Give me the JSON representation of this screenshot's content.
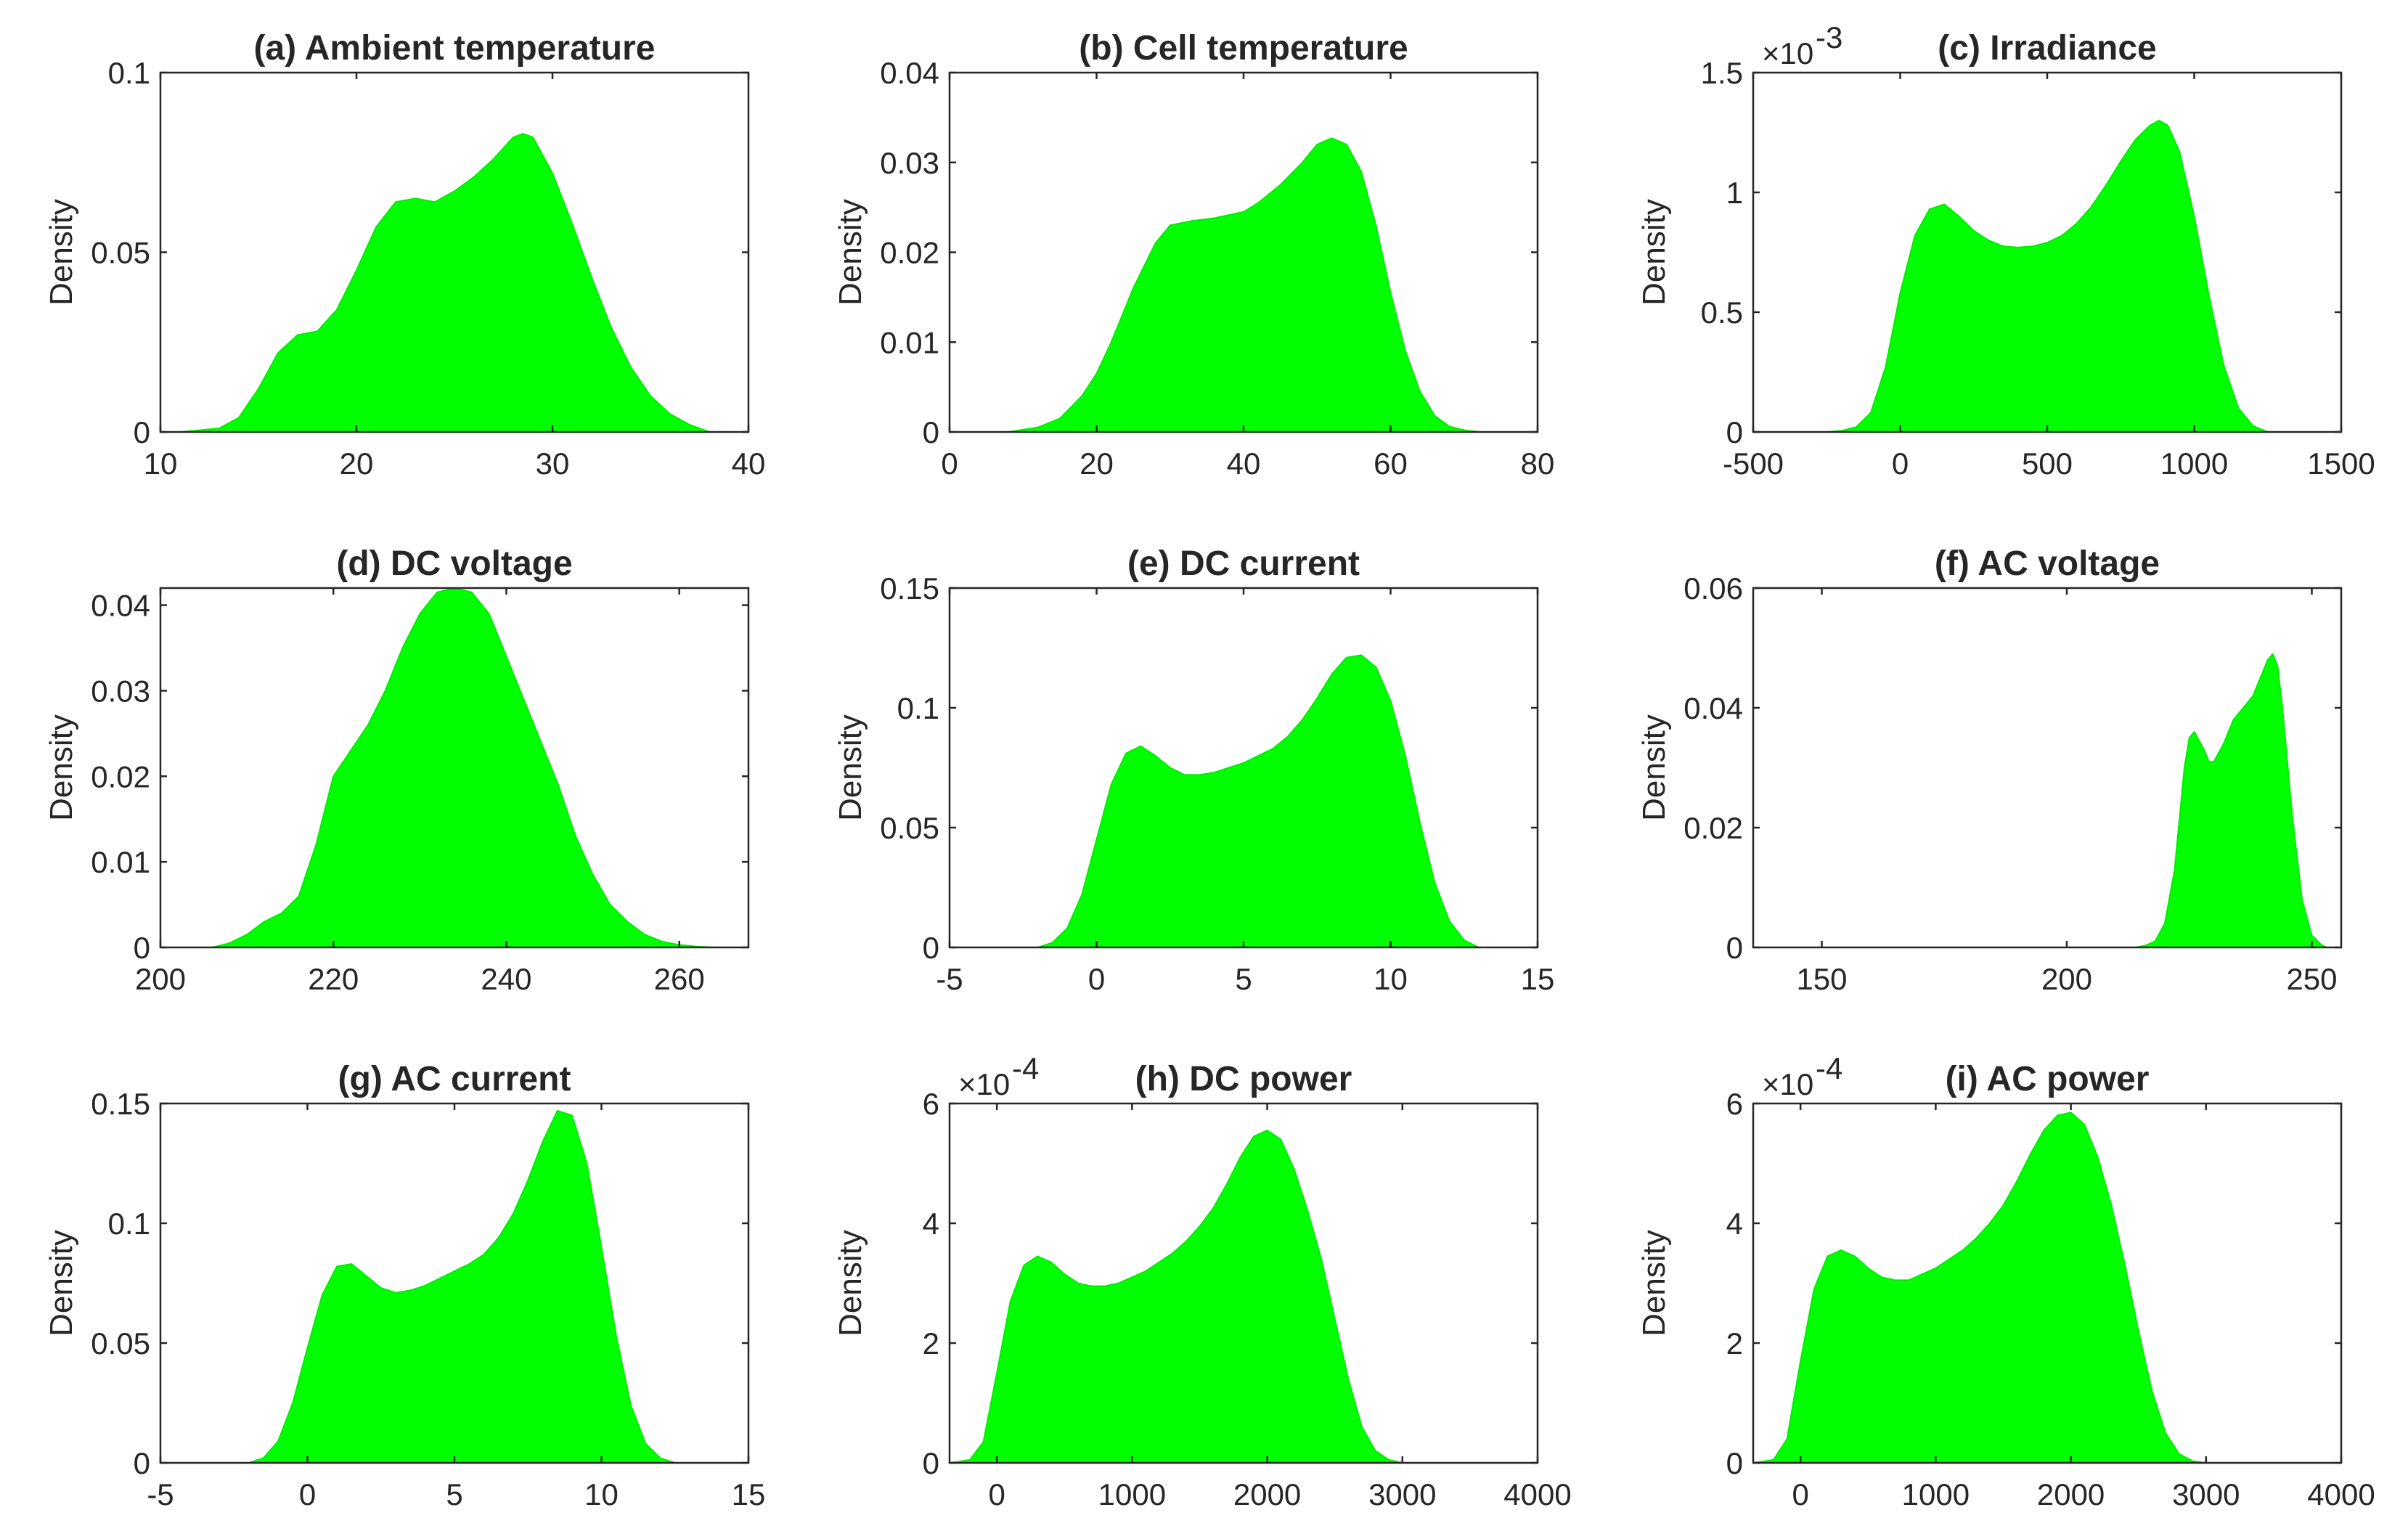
{
  "figure": {
    "fill_color": "#00ff00",
    "axis_color": "#262626"
  },
  "chart_data": [
    {
      "type": "area",
      "title": "(a) Ambient temperature",
      "ylabel": "Density",
      "xlabel": "",
      "xlim": [
        10,
        40
      ],
      "ylim": [
        0,
        0.1
      ],
      "xticks": [
        10,
        20,
        30,
        40
      ],
      "xtick_labels": [
        "10",
        "20",
        "30",
        "40"
      ],
      "yticks": [
        0,
        0.05,
        0.1
      ],
      "ytick_labels": [
        "0",
        "0.05",
        "0.1"
      ],
      "exponent": "",
      "x": [
        11,
        13,
        14,
        15,
        16,
        17,
        18,
        19,
        20,
        21,
        22,
        23,
        24,
        25,
        26,
        27,
        28,
        28.5,
        29,
        30,
        31,
        32,
        33,
        34,
        35,
        36,
        37,
        38
      ],
      "y": [
        0,
        0.001,
        0.004,
        0.012,
        0.022,
        0.027,
        0.028,
        0.034,
        0.045,
        0.057,
        0.064,
        0.065,
        0.064,
        0.067,
        0.071,
        0.076,
        0.082,
        0.083,
        0.082,
        0.072,
        0.058,
        0.043,
        0.029,
        0.018,
        0.01,
        0.005,
        0.002,
        0
      ]
    },
    {
      "type": "area",
      "title": "(b) Cell temperature",
      "ylabel": "Density",
      "xlabel": "",
      "xlim": [
        0,
        80
      ],
      "ylim": [
        0,
        0.04
      ],
      "xticks": [
        0,
        20,
        40,
        60,
        80
      ],
      "xtick_labels": [
        "0",
        "20",
        "40",
        "60",
        "80"
      ],
      "yticks": [
        0,
        0.01,
        0.02,
        0.03,
        0.04
      ],
      "ytick_labels": [
        "0",
        "0.01",
        "0.02",
        "0.03",
        "0.04"
      ],
      "exponent": "",
      "x": [
        8,
        12,
        15,
        18,
        20,
        22,
        25,
        28,
        30,
        33,
        36,
        40,
        42,
        45,
        48,
        50,
        52,
        54,
        56,
        58,
        60,
        62,
        64,
        66,
        68,
        70,
        72
      ],
      "y": [
        0,
        0.0005,
        0.0015,
        0.004,
        0.0065,
        0.01,
        0.016,
        0.021,
        0.023,
        0.0235,
        0.0238,
        0.0245,
        0.0255,
        0.0275,
        0.03,
        0.032,
        0.0327,
        0.032,
        0.029,
        0.023,
        0.0155,
        0.009,
        0.0045,
        0.0018,
        0.0006,
        0.0002,
        0
      ]
    },
    {
      "type": "area",
      "title": "(c) Irradiance",
      "ylabel": "Density",
      "xlabel": "",
      "xlim": [
        -500,
        1500
      ],
      "ylim": [
        0,
        1.5
      ],
      "xticks": [
        -500,
        0,
        500,
        1000,
        1500
      ],
      "xtick_labels": [
        "-500",
        "0",
        "500",
        "1000",
        "1500"
      ],
      "yticks": [
        0,
        0.5,
        1,
        1.5
      ],
      "ytick_labels": [
        "0",
        "0.5",
        "1",
        "1.5"
      ],
      "exponent": "-3",
      "x": [
        -250,
        -200,
        -150,
        -100,
        -50,
        0,
        50,
        100,
        150,
        200,
        250,
        300,
        350,
        400,
        450,
        500,
        550,
        600,
        650,
        700,
        750,
        800,
        850,
        880,
        910,
        950,
        1000,
        1050,
        1100,
        1150,
        1200,
        1250
      ],
      "y": [
        0,
        0.005,
        0.02,
        0.08,
        0.27,
        0.58,
        0.82,
        0.93,
        0.95,
        0.9,
        0.84,
        0.8,
        0.775,
        0.77,
        0.775,
        0.79,
        0.82,
        0.87,
        0.94,
        1.03,
        1.13,
        1.22,
        1.28,
        1.3,
        1.28,
        1.17,
        0.9,
        0.57,
        0.28,
        0.1,
        0.025,
        0
      ]
    },
    {
      "type": "area",
      "title": "(d) DC voltage",
      "ylabel": "Density",
      "xlabel": "",
      "xlim": [
        200,
        268
      ],
      "ylim": [
        0,
        0.042
      ],
      "xticks": [
        200,
        220,
        240,
        260
      ],
      "xtick_labels": [
        "200",
        "220",
        "240",
        "260"
      ],
      "yticks": [
        0,
        0.01,
        0.02,
        0.03,
        0.04
      ],
      "ytick_labels": [
        "0",
        "0.01",
        "0.02",
        "0.03",
        "0.04"
      ],
      "exponent": "",
      "x": [
        206,
        208,
        210,
        212,
        214,
        216,
        218,
        220,
        222,
        224,
        226,
        228,
        230,
        232,
        234,
        236,
        238,
        240,
        242,
        244,
        246,
        248,
        250,
        252,
        254,
        256,
        258,
        260,
        262,
        264
      ],
      "y": [
        0,
        0.0005,
        0.0015,
        0.003,
        0.004,
        0.006,
        0.012,
        0.02,
        0.023,
        0.026,
        0.03,
        0.035,
        0.039,
        0.0415,
        0.042,
        0.0415,
        0.039,
        0.034,
        0.029,
        0.024,
        0.019,
        0.013,
        0.0085,
        0.005,
        0.003,
        0.0015,
        0.0007,
        0.0003,
        0.0001,
        0
      ]
    },
    {
      "type": "area",
      "title": "(e) DC current",
      "ylabel": "Density",
      "xlabel": "",
      "xlim": [
        -5,
        15
      ],
      "ylim": [
        0,
        0.15
      ],
      "xticks": [
        -5,
        0,
        5,
        10,
        15
      ],
      "xtick_labels": [
        "-5",
        "0",
        "5",
        "10",
        "15"
      ],
      "yticks": [
        0,
        0.05,
        0.1,
        0.15
      ],
      "ytick_labels": [
        "0",
        "0.05",
        "0.1",
        "0.15"
      ],
      "exponent": "",
      "x": [
        -2,
        -1.5,
        -1,
        -0.5,
        0,
        0.5,
        1,
        1.5,
        2,
        2.5,
        3,
        3.5,
        4,
        4.5,
        5,
        5.5,
        6,
        6.5,
        7,
        7.5,
        8,
        8.5,
        9,
        9.5,
        10,
        10.5,
        11,
        11.5,
        12,
        12.5,
        13
      ],
      "y": [
        0,
        0.002,
        0.008,
        0.022,
        0.045,
        0.068,
        0.081,
        0.084,
        0.08,
        0.075,
        0.072,
        0.072,
        0.073,
        0.075,
        0.077,
        0.08,
        0.083,
        0.088,
        0.095,
        0.104,
        0.114,
        0.121,
        0.122,
        0.117,
        0.103,
        0.08,
        0.052,
        0.027,
        0.011,
        0.003,
        0
      ]
    },
    {
      "type": "area",
      "title": "(f) AC voltage",
      "ylabel": "Density",
      "xlabel": "",
      "xlim": [
        136,
        256
      ],
      "ylim": [
        0,
        0.06
      ],
      "xticks": [
        150,
        200,
        250
      ],
      "xtick_labels": [
        "150",
        "200",
        "250"
      ],
      "yticks": [
        0,
        0.02,
        0.04,
        0.06
      ],
      "ytick_labels": [
        "0",
        "0.02",
        "0.04",
        "0.06"
      ],
      "exponent": "",
      "x": [
        136,
        214,
        216,
        218,
        220,
        222,
        224,
        225,
        226,
        228,
        229,
        230,
        232,
        234,
        236,
        237,
        238,
        240,
        241,
        242,
        243,
        244,
        246,
        248,
        250,
        252,
        253
      ],
      "y": [
        0,
        0,
        0.0003,
        0.001,
        0.004,
        0.013,
        0.03,
        0.035,
        0.036,
        0.033,
        0.031,
        0.031,
        0.034,
        0.038,
        0.04,
        0.041,
        0.042,
        0.046,
        0.048,
        0.049,
        0.047,
        0.04,
        0.022,
        0.008,
        0.002,
        0.0004,
        0
      ]
    },
    {
      "type": "area",
      "title": "(g) AC current",
      "ylabel": "Density",
      "xlabel": "",
      "xlim": [
        -5,
        15
      ],
      "ylim": [
        0,
        0.15
      ],
      "xticks": [
        -5,
        0,
        5,
        10,
        15
      ],
      "xtick_labels": [
        "-5",
        "0",
        "5",
        "10",
        "15"
      ],
      "yticks": [
        0,
        0.05,
        0.1,
        0.15
      ],
      "ytick_labels": [
        "0",
        "0.05",
        "0.1",
        "0.15"
      ],
      "exponent": "",
      "x": [
        -2,
        -1.5,
        -1,
        -0.5,
        0,
        0.5,
        1,
        1.5,
        2,
        2.5,
        3,
        3.5,
        4,
        4.5,
        5,
        5.5,
        6,
        6.5,
        7,
        7.5,
        8,
        8.5,
        9,
        9.5,
        10,
        10.5,
        11,
        11.5,
        12,
        12.5
      ],
      "y": [
        0,
        0.002,
        0.009,
        0.025,
        0.048,
        0.07,
        0.082,
        0.083,
        0.078,
        0.073,
        0.071,
        0.072,
        0.074,
        0.077,
        0.08,
        0.083,
        0.087,
        0.094,
        0.104,
        0.118,
        0.134,
        0.147,
        0.145,
        0.125,
        0.09,
        0.053,
        0.024,
        0.008,
        0.002,
        0
      ]
    },
    {
      "type": "area",
      "title": "(h) DC power",
      "ylabel": "Density",
      "xlabel": "",
      "xlim": [
        -350,
        4000
      ],
      "ylim": [
        0,
        6
      ],
      "xticks": [
        0,
        1000,
        2000,
        3000,
        4000
      ],
      "xtick_labels": [
        "0",
        "1000",
        "2000",
        "3000",
        "4000"
      ],
      "yticks": [
        0,
        2,
        4,
        6
      ],
      "ytick_labels": [
        "0",
        "2",
        "4",
        "6"
      ],
      "exponent": "-4",
      "x": [
        -350,
        -200,
        -100,
        0,
        100,
        200,
        300,
        400,
        500,
        600,
        700,
        800,
        900,
        1000,
        1100,
        1200,
        1300,
        1400,
        1500,
        1600,
        1700,
        1800,
        1900,
        2000,
        2100,
        2200,
        2300,
        2400,
        2500,
        2600,
        2700,
        2800,
        2900,
        3000
      ],
      "y": [
        0,
        0.05,
        0.35,
        1.5,
        2.7,
        3.3,
        3.45,
        3.35,
        3.15,
        3.0,
        2.95,
        2.95,
        3.0,
        3.1,
        3.2,
        3.35,
        3.5,
        3.7,
        3.95,
        4.25,
        4.65,
        5.1,
        5.45,
        5.55,
        5.4,
        4.9,
        4.2,
        3.4,
        2.4,
        1.4,
        0.6,
        0.2,
        0.05,
        0
      ]
    },
    {
      "type": "area",
      "title": "(i) AC power",
      "ylabel": "Density",
      "xlabel": "",
      "xlim": [
        -350,
        4000
      ],
      "ylim": [
        0,
        6
      ],
      "xticks": [
        0,
        1000,
        2000,
        3000,
        4000
      ],
      "xtick_labels": [
        "0",
        "1000",
        "2000",
        "3000",
        "4000"
      ],
      "yticks": [
        0,
        2,
        4,
        6
      ],
      "ytick_labels": [
        "0",
        "2",
        "4",
        "6"
      ],
      "exponent": "-4",
      "x": [
        -350,
        -200,
        -100,
        0,
        100,
        200,
        300,
        400,
        500,
        600,
        700,
        800,
        900,
        1000,
        1100,
        1200,
        1300,
        1400,
        1500,
        1600,
        1700,
        1800,
        1900,
        2000,
        2100,
        2200,
        2300,
        2400,
        2500,
        2600,
        2700,
        2800,
        2900,
        3000
      ],
      "y": [
        0,
        0.05,
        0.4,
        1.7,
        2.9,
        3.45,
        3.55,
        3.45,
        3.25,
        3.1,
        3.05,
        3.05,
        3.15,
        3.25,
        3.4,
        3.55,
        3.75,
        4.0,
        4.3,
        4.7,
        5.15,
        5.55,
        5.8,
        5.85,
        5.65,
        5.1,
        4.3,
        3.3,
        2.2,
        1.2,
        0.5,
        0.15,
        0.03,
        0
      ]
    }
  ]
}
